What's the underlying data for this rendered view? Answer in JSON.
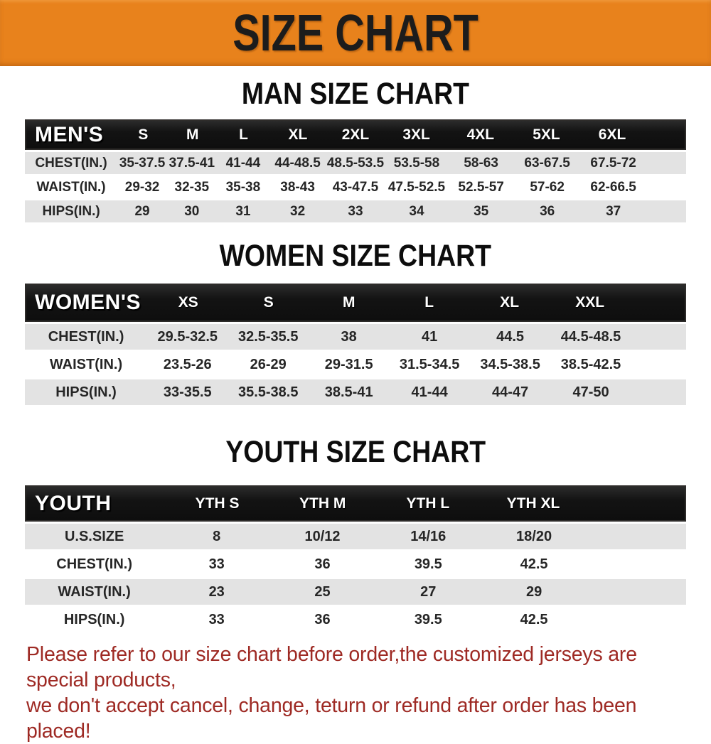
{
  "banner": {
    "title": "SIZE CHART",
    "bg_color": "#e8821c",
    "text_color": "#1c1c1c"
  },
  "sections": [
    {
      "heading": "MAN SIZE CHART",
      "header_label": "MEN'S",
      "columns": [
        "S",
        "M",
        "L",
        "XL",
        "2XL",
        "3XL",
        "4XL",
        "5XL",
        "6XL"
      ],
      "rows": [
        {
          "label": "CHEST(IN.)",
          "values": [
            "35-37.5",
            "37.5-41",
            "41-44",
            "44-48.5",
            "48.5-53.5",
            "53.5-58",
            "58-63",
            "63-67.5",
            "67.5-72"
          ]
        },
        {
          "label": "WAIST(IN.)",
          "values": [
            "29-32",
            "32-35",
            "35-38",
            "38-43",
            "43-47.5",
            "47.5-52.5",
            "52.5-57",
            "57-62",
            "62-66.5"
          ]
        },
        {
          "label": "HIPS(IN.)",
          "values": [
            "29",
            "30",
            "31",
            "32",
            "33",
            "34",
            "35",
            "36",
            "37"
          ]
        }
      ]
    },
    {
      "heading": "WOMEN SIZE CHART",
      "header_label": "WOMEN'S",
      "columns": [
        "XS",
        "S",
        "M",
        "L",
        "XL",
        "XXL"
      ],
      "rows": [
        {
          "label": "CHEST(IN.)",
          "values": [
            "29.5-32.5",
            "32.5-35.5",
            "38",
            "41",
            "44.5",
            "44.5-48.5"
          ]
        },
        {
          "label": "WAIST(IN.)",
          "values": [
            "23.5-26",
            "26-29",
            "29-31.5",
            "31.5-34.5",
            "34.5-38.5",
            "38.5-42.5"
          ]
        },
        {
          "label": "HIPS(IN.)",
          "values": [
            "33-35.5",
            "35.5-38.5",
            "38.5-41",
            "41-44",
            "44-47",
            "47-50"
          ]
        }
      ]
    },
    {
      "heading": "YOUTH SIZE CHART",
      "header_label": "YOUTH",
      "columns": [
        "YTH S",
        "YTH M",
        "YTH L",
        "YTH XL"
      ],
      "rows": [
        {
          "label": "U.S.SIZE",
          "values": [
            "8",
            "10/12",
            "14/16",
            "18/20"
          ]
        },
        {
          "label": "CHEST(IN.)",
          "values": [
            "33",
            "36",
            "39.5",
            "42.5"
          ]
        },
        {
          "label": "WAIST(IN.)",
          "values": [
            "23",
            "25",
            "27",
            "29"
          ]
        },
        {
          "label": "HIPS(IN.)",
          "values": [
            "33",
            "36",
            "39.5",
            "42.5"
          ]
        }
      ]
    }
  ],
  "disclaimer": {
    "line1": "Please refer to our size chart before order,the customized jerseys are special products,",
    "line2": "we don't accept cancel, change, teturn or refund after order has been placed!",
    "color": "#9e2a24"
  }
}
